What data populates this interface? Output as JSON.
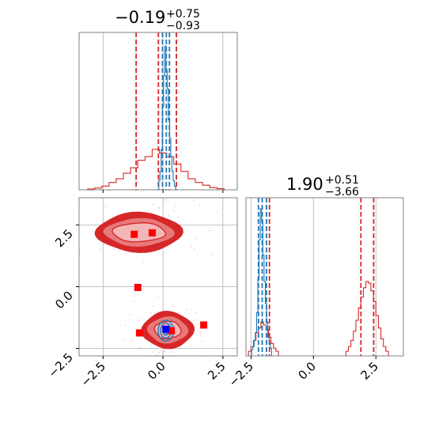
{
  "colors": {
    "blue": "#1f77b4",
    "red": "#d62728",
    "red_fill_light": "#f4b6b7",
    "red_fill_mid": "#e8797a",
    "red_fill_dark": "#d62728",
    "marker_red": "#ff0000",
    "marker_blue": "#0000ff",
    "grid": "#b0b0b0",
    "frame": "#808080"
  },
  "titles": {
    "param1": {
      "base": "−0.19",
      "sup": "+0.75",
      "sub": "−0.93"
    },
    "param2": {
      "base": "1.90",
      "sup": "+0.51",
      "sub": "−3.66"
    }
  },
  "chart_data": [
    {
      "type": "histogram",
      "panel": "top-left marginal",
      "xlim": [
        -3.5,
        3.1
      ],
      "ticks": [
        -2.5,
        0.0,
        2.5
      ],
      "grid": true,
      "series": [
        {
          "color": "#d62728",
          "bins": [
            [
              -3.0,
              0.004
            ],
            [
              -2.7,
              0.01
            ],
            [
              -2.4,
              0.02
            ],
            [
              -2.1,
              0.04
            ],
            [
              -1.8,
              0.06
            ],
            [
              -1.5,
              0.09
            ],
            [
              -1.2,
              0.12
            ],
            [
              -0.9,
              0.16
            ],
            [
              -0.6,
              0.18
            ],
            [
              -0.3,
              0.22
            ],
            [
              0.0,
              0.2
            ],
            [
              0.3,
              0.18
            ],
            [
              0.6,
              0.14
            ],
            [
              0.9,
              0.1
            ],
            [
              1.2,
              0.06
            ],
            [
              1.5,
              0.04
            ],
            [
              1.8,
              0.025
            ],
            [
              2.1,
              0.012
            ],
            [
              2.4,
              0.006
            ]
          ],
          "bin_width": 0.3,
          "quantiles": [
            -1.12,
            -0.19,
            0.56
          ]
        },
        {
          "color": "#1f77b4",
          "bins": [
            [
              -0.15,
              0.05
            ],
            [
              -0.1,
              0.1
            ],
            [
              -0.05,
              0.22
            ],
            [
              0.0,
              0.45
            ],
            [
              0.05,
              0.62
            ],
            [
              0.1,
              0.78
            ],
            [
              0.15,
              0.65
            ],
            [
              0.2,
              0.55
            ],
            [
              0.25,
              0.38
            ],
            [
              0.3,
              0.28
            ],
            [
              0.35,
              0.18
            ],
            [
              0.4,
              0.1
            ],
            [
              0.45,
              0.05
            ],
            [
              0.5,
              0.02
            ]
          ],
          "bin_width": 0.05,
          "quantiles": [
            -0.02,
            0.14,
            0.27
          ]
        }
      ]
    },
    {
      "type": "histogram",
      "panel": "bottom-right marginal",
      "xlim": [
        -2.7,
        3.6
      ],
      "ticks": [
        -2.5,
        0.0,
        2.5
      ],
      "grid": true,
      "series": [
        {
          "color": "#d62728",
          "bins": [
            [
              -2.55,
              0.03
            ],
            [
              -2.45,
              0.06
            ],
            [
              -2.35,
              0.1
            ],
            [
              -2.25,
              0.15
            ],
            [
              -2.15,
              0.18
            ],
            [
              -2.05,
              0.22
            ],
            [
              -1.95,
              0.2
            ],
            [
              -1.85,
              0.17
            ],
            [
              -1.75,
              0.12
            ],
            [
              -1.65,
              0.08
            ],
            [
              -1.55,
              0.05
            ],
            [
              -1.45,
              0.03
            ],
            [
              1.35,
              0.03
            ],
            [
              1.45,
              0.06
            ],
            [
              1.55,
              0.1
            ],
            [
              1.65,
              0.16
            ],
            [
              1.75,
              0.23
            ],
            [
              1.85,
              0.31
            ],
            [
              1.95,
              0.38
            ],
            [
              2.05,
              0.44
            ],
            [
              2.15,
              0.48
            ],
            [
              2.25,
              0.47
            ],
            [
              2.35,
              0.42
            ],
            [
              2.45,
              0.35
            ],
            [
              2.55,
              0.26
            ],
            [
              2.65,
              0.18
            ],
            [
              2.75,
              0.11
            ],
            [
              2.85,
              0.06
            ],
            [
              2.95,
              0.03
            ]
          ],
          "bin_width": 0.1,
          "quantiles": [
            -1.76,
            1.9,
            2.41
          ]
        },
        {
          "color": "#1f77b4",
          "bins": [
            [
              -2.45,
              0.04
            ],
            [
              -2.4,
              0.06
            ],
            [
              -2.35,
              0.1
            ],
            [
              -2.3,
              0.15
            ],
            [
              -2.25,
              0.28
            ],
            [
              -2.2,
              0.5
            ],
            [
              -2.15,
              0.75
            ],
            [
              -2.1,
              0.95
            ],
            [
              -2.05,
              0.87
            ],
            [
              -2.0,
              0.65
            ],
            [
              -1.95,
              0.48
            ],
            [
              -1.9,
              0.34
            ],
            [
              -1.85,
              0.22
            ],
            [
              -1.8,
              0.12
            ],
            [
              -1.75,
              0.08
            ],
            [
              -1.7,
              0.05
            ]
          ],
          "bin_width": 0.05,
          "quantiles": [
            -2.2,
            -2.05,
            -1.88
          ]
        }
      ]
    },
    {
      "type": "contour",
      "panel": "bottom-left joint",
      "xlim": [
        -3.5,
        3.1
      ],
      "ylim": [
        -2.8,
        3.6
      ],
      "xticks": [
        -2.5,
        0.0,
        2.5
      ],
      "yticks": [
        -2.5,
        0.0,
        2.5
      ],
      "grid": true,
      "red_modes": [
        {
          "cx": -1.0,
          "cy": 2.2,
          "rx": [
            1.1,
            1.45,
            1.75
          ],
          "ry": [
            0.38,
            0.58,
            0.78
          ]
        },
        {
          "cx": 0.2,
          "cy": -1.75,
          "rx": [
            0.55,
            0.85,
            1.05
          ],
          "ry": [
            0.35,
            0.55,
            0.72
          ]
        }
      ],
      "blue_mode": {
        "cx": 0.12,
        "cy": -1.78,
        "rx": [
          0.12,
          0.22,
          0.32
        ],
        "ry": [
          0.18,
          0.3,
          0.42
        ]
      },
      "red_markers": [
        [
          -1.2,
          2.12
        ],
        [
          -0.45,
          2.18
        ],
        [
          -1.05,
          -0.03
        ],
        [
          -0.98,
          -1.87
        ],
        [
          0.35,
          -1.78
        ],
        [
          1.7,
          -1.55
        ]
      ],
      "blue_markers": [
        [
          0.12,
          -1.72
        ]
      ]
    }
  ]
}
